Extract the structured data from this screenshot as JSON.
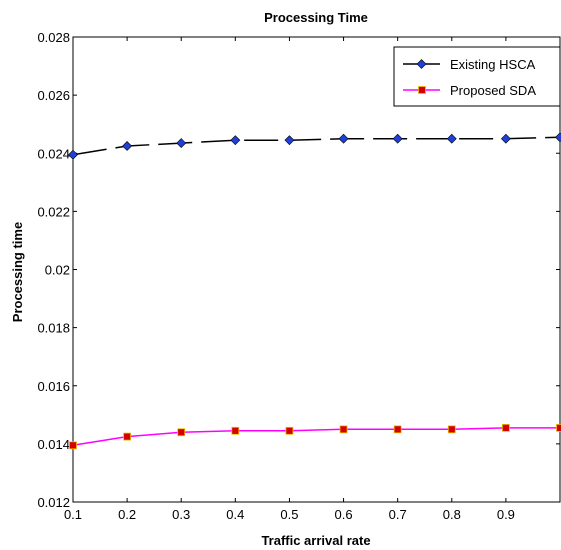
{
  "chart_data": {
    "type": "line",
    "title": "Processing Time",
    "xlabel": "Traffic arrival rate",
    "ylabel": "Processing time",
    "xlim": [
      0.1,
      1.0
    ],
    "ylim": [
      0.012,
      0.028
    ],
    "xticks": [
      0.1,
      0.2,
      0.3,
      0.4,
      0.5,
      0.6,
      0.7,
      0.8,
      0.9
    ],
    "xtick_labels": [
      "0.1",
      "0.2",
      "0.3",
      "0.4",
      "0.5",
      "0.6",
      "0.7",
      "0.8",
      "0.9"
    ],
    "yticks": [
      0.012,
      0.014,
      0.016,
      0.018,
      0.02,
      0.022,
      0.024,
      0.026,
      0.028
    ],
    "ytick_labels": [
      "0.012",
      "0.014",
      "0.016",
      "0.018",
      "0.02",
      "0.022",
      "0.024",
      "0.026",
      "0.028"
    ],
    "grid": false,
    "legend_position": "top-right",
    "x": [
      0.1,
      0.2,
      0.3,
      0.4,
      0.5,
      0.6,
      0.7,
      0.8,
      0.9,
      1.0
    ],
    "series": [
      {
        "name": "Existing HSCA",
        "values": [
          0.02395,
          0.02425,
          0.02435,
          0.02445,
          0.02445,
          0.0245,
          0.0245,
          0.0245,
          0.0245,
          0.02455
        ],
        "color": "#000000",
        "marker": "diamond",
        "marker_color": "#1f3fd8",
        "line_style": "dashed"
      },
      {
        "name": "Proposed SDA",
        "values": [
          0.01395,
          0.01425,
          0.0144,
          0.01445,
          0.01445,
          0.0145,
          0.0145,
          0.0145,
          0.01455,
          0.01455
        ],
        "color": "#ff00ff",
        "marker": "square",
        "marker_color": "#d40000",
        "line_style": "solid"
      }
    ]
  }
}
